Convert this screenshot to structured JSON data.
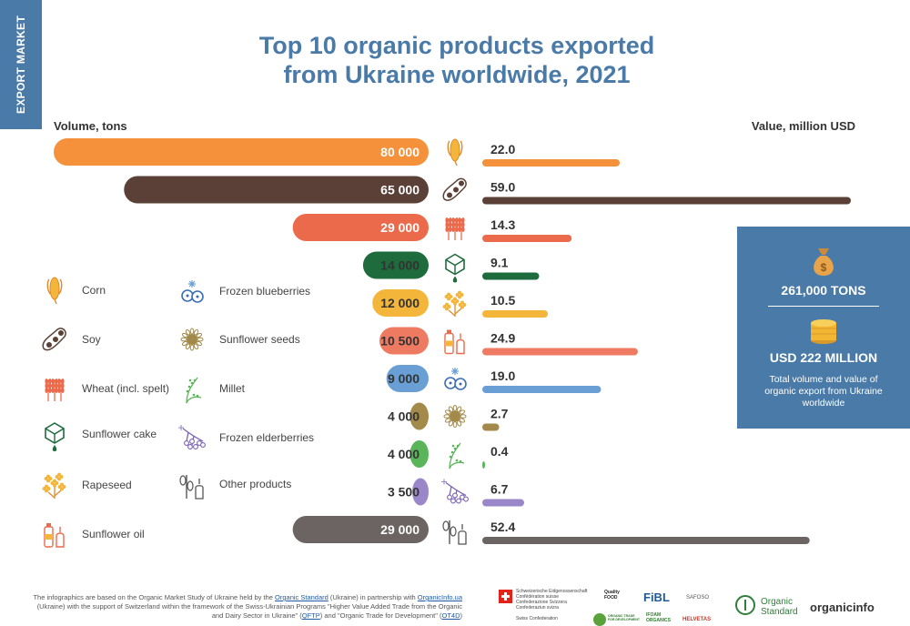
{
  "side_tab": "EXPORT MARKET",
  "title_line1": "Top 10 organic products exported",
  "title_line2": "from Ukraine worldwide, 2021",
  "chart_data": {
    "type": "bar",
    "title": "Top 10 organic products exported from Ukraine worldwide, 2021",
    "left_axis_label": "Volume, tons",
    "right_axis_label": "Value, million USD",
    "volume_labels": [
      "80 000",
      "65 000",
      "29 000",
      "14 000",
      "12 000",
      "10 500",
      "9 000",
      "4 000",
      "4 000",
      "3 500",
      "29 000"
    ],
    "volume_tons": [
      80000,
      65000,
      29000,
      14000,
      12000,
      10500,
      9000,
      4000,
      4000,
      3500,
      29000
    ],
    "value_labels": [
      "22.0",
      "59.0",
      "14.3",
      "9.1",
      "10.5",
      "24.9",
      "19.0",
      "2.7",
      "0.4",
      "6.7",
      "52.4"
    ],
    "value_musd": [
      22.0,
      59.0,
      14.3,
      9.1,
      10.5,
      24.9,
      19.0,
      2.7,
      0.4,
      6.7,
      52.4
    ],
    "colors": [
      "#f4913a",
      "#5a4036",
      "#ec6a4c",
      "#1e6b3d",
      "#f4b63a",
      "#ef7a62",
      "#6a9fd6",
      "#a38a4a",
      "#5ab55a",
      "#9a87c9",
      "#6b6462"
    ],
    "icons": [
      "corn-icon",
      "soy-icon",
      "wheat-icon",
      "sunflower-cake-icon",
      "rapeseed-icon",
      "sunflower-oil-icon",
      "frozen-blueberries-icon",
      "sunflower-seeds-icon",
      "millet-icon",
      "frozen-elderberries-icon",
      "other-products-icon"
    ]
  },
  "legend": {
    "left": [
      {
        "label": "Corn",
        "icon": "corn-icon"
      },
      {
        "label": "Soy",
        "icon": "soy-icon"
      },
      {
        "label": "Wheat (incl. spelt)",
        "icon": "wheat-icon"
      },
      {
        "label": "Sunflower cake",
        "icon": "sunflower-cake-icon"
      },
      {
        "label": "Rapeseed",
        "icon": "rapeseed-icon"
      },
      {
        "label": "Sunflower oil",
        "icon": "sunflower-oil-icon"
      }
    ],
    "right": [
      {
        "label": "Frozen blueberries",
        "icon": "frozen-blueberries-icon"
      },
      {
        "label": "Sunflower seeds",
        "icon": "sunflower-seeds-icon"
      },
      {
        "label": "Millet",
        "icon": "millet-icon"
      },
      {
        "label": "Frozen elderberries",
        "icon": "frozen-elderberries-icon"
      },
      {
        "label": "Other products",
        "icon": "other-products-icon"
      }
    ]
  },
  "totals": {
    "tons": "261,000 TONS",
    "usd": "USD 222 MILLION",
    "note": "Total volume and value of organic export from Ukraine worldwide"
  },
  "footer": {
    "p1": "The infographics are based on the Organic Market Study of Ukraine held by the ",
    "link1": "Organic Standard",
    "p2": " (Ukraine) in partnership with ",
    "link2": "OrganicInfo.ua",
    "p3": " (Ukraine) with the support of Switzerland within the framework of the Swiss-Ukrainian Programs \"Higher Value Added Trade from the Organic and Dairy Sector in Ukraine\" (",
    "link3": "QFTP",
    "p4": ") and \"Organic Trade for Development\" (",
    "link4": "OT4D",
    "p5": ")"
  },
  "logos": {
    "swiss_line1": "Schweizerische Eidgenossenschaft",
    "swiss_line2": "Confédération suisse",
    "swiss_line3": "Confederazione Svizzera",
    "swiss_line4": "Confederaziun svizra",
    "swiss_line5": "Swiss Confederation",
    "quality_food": "Quality FOOD",
    "fibl": "FiBL",
    "safoso": "SAFOSO",
    "otd": "ORGANIC TRADE FOR DEVELOPMENT",
    "ifoam": "IFOAM ORGANICS",
    "helvetas": "HELVETAS",
    "organic_standard": "Organic Standard",
    "organic_info": "organicinfo"
  },
  "accent_color": "#4a7aa7"
}
